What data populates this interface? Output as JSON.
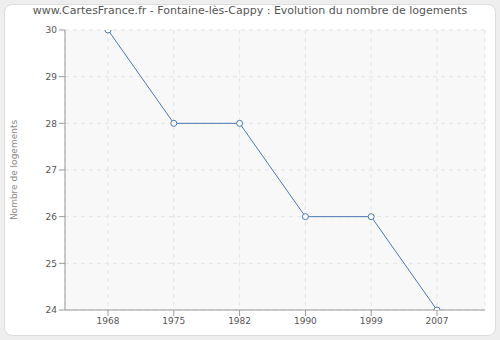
{
  "chart_data": {
    "type": "line",
    "title": "www.CartesFrance.fr - Fontaine-lès-Cappy : Evolution du nombre de logements",
    "y_label": "Nombre de logements",
    "categories": [
      "1968",
      "1975",
      "1982",
      "1990",
      "1999",
      "2007"
    ],
    "values": [
      30,
      28,
      28,
      26,
      26,
      24
    ],
    "color": "#4a7ab0",
    "marker": "circle",
    "ylim": [
      24,
      30
    ],
    "yticks": [
      24,
      25,
      26,
      27,
      28,
      29,
      30
    ],
    "grid": true
  }
}
